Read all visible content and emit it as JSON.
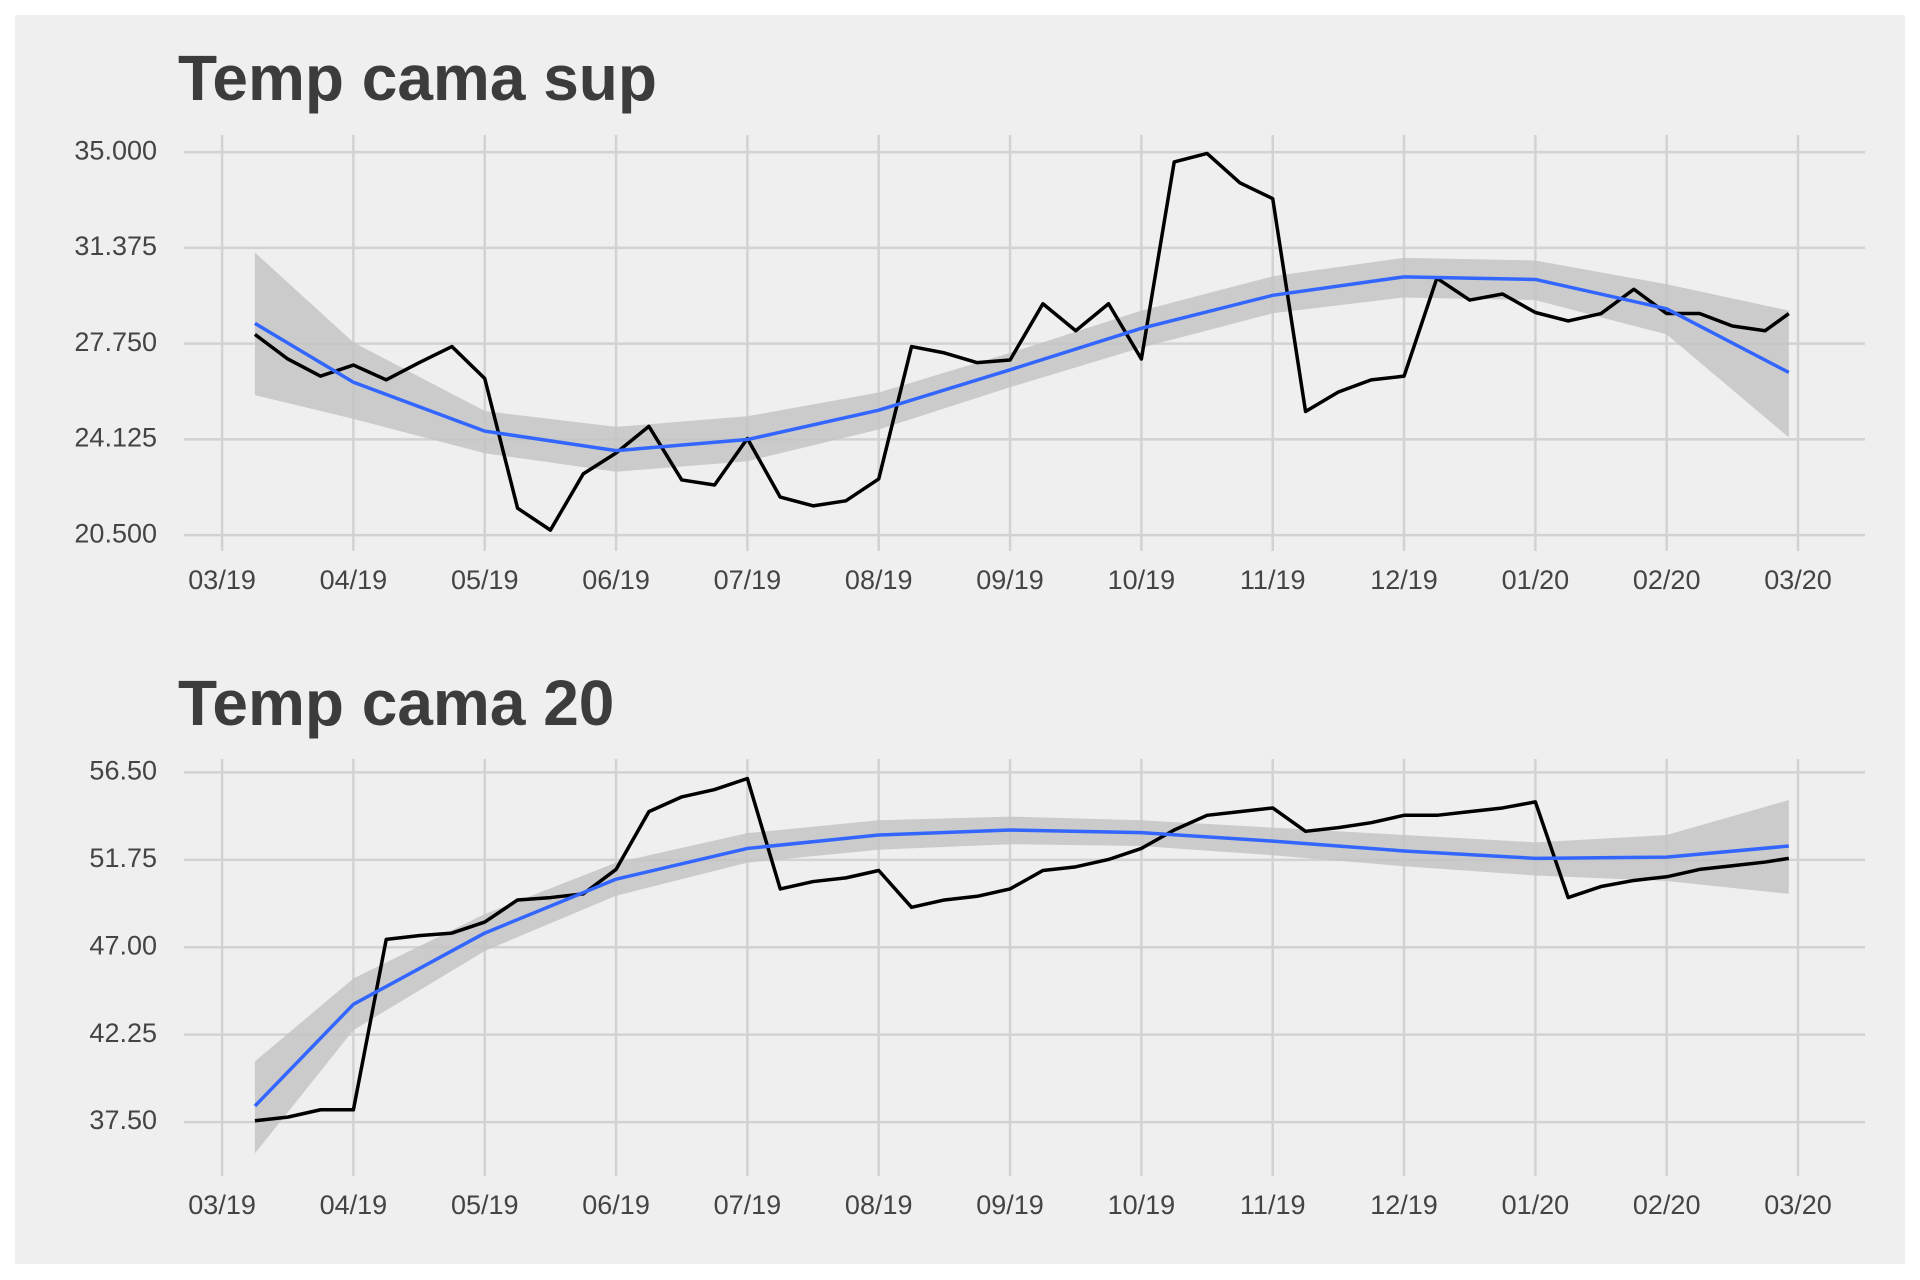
{
  "chart_data": [
    {
      "type": "line",
      "title": "Temp cama sup",
      "grid": true,
      "x": [
        0.25,
        0.5,
        0.75,
        1.0,
        1.25,
        1.5,
        1.75,
        2.0,
        2.25,
        2.5,
        2.75,
        3.0,
        3.25,
        3.5,
        3.75,
        4.0,
        4.25,
        4.5,
        4.75,
        5.0,
        5.25,
        5.5,
        5.75,
        6.0,
        6.25,
        6.5,
        6.75,
        7.0,
        7.25,
        7.5,
        7.75,
        8.0,
        8.25,
        8.5,
        8.75,
        9.0,
        9.25,
        9.5,
        9.75,
        10.0,
        10.25,
        10.5,
        10.75,
        11.0,
        11.25,
        11.5,
        11.75,
        11.93
      ],
      "xlim": [
        -0.29,
        12.51
      ],
      "xticks": [
        {
          "value": 0,
          "label": "03/19"
        },
        {
          "value": 1,
          "label": "04/19"
        },
        {
          "value": 2,
          "label": "05/19"
        },
        {
          "value": 3,
          "label": "06/19"
        },
        {
          "value": 4,
          "label": "07/19"
        },
        {
          "value": 5,
          "label": "08/19"
        },
        {
          "value": 6,
          "label": "09/19"
        },
        {
          "value": 7,
          "label": "10/19"
        },
        {
          "value": 8,
          "label": "11/19"
        },
        {
          "value": 9,
          "label": "12/19"
        },
        {
          "value": 10,
          "label": "01/20"
        },
        {
          "value": 11,
          "label": "02/20"
        },
        {
          "value": 12,
          "label": "03/20"
        }
      ],
      "ylim": [
        19.9,
        35.65
      ],
      "yticks": [
        {
          "value": 35,
          "label": "35.000"
        },
        31.375,
        {
          "value": 27.75,
          "label": "27.750"
        },
        24.125,
        {
          "value": 20.5,
          "label": "20.500"
        }
      ],
      "series": [
        {
          "color": "#000000",
          "values": [
            28.1,
            27.17,
            26.52,
            26.94,
            26.38,
            27.03,
            27.64,
            26.43,
            21.52,
            20.69,
            22.82,
            23.61,
            24.62,
            22.59,
            22.4,
            24.16,
            21.94,
            21.61,
            21.8,
            22.63,
            27.64,
            27.4,
            27.03,
            27.13,
            29.26,
            28.24,
            29.26,
            27.17,
            34.63,
            34.95,
            33.84,
            33.24,
            25.18,
            25.92,
            26.38,
            26.52,
            30.23,
            29.4,
            29.63,
            28.93,
            28.61,
            28.89,
            29.81,
            28.89,
            28.89,
            28.42,
            28.24,
            28.89
          ]
        }
      ],
      "smooth": {
        "color": "#3366ff",
        "band_color": "#c4c4c4",
        "x": [
          0.25,
          1,
          2,
          3,
          4,
          5,
          6,
          7,
          8,
          9,
          10,
          11,
          11.93
        ],
        "values": [
          28.52,
          26.29,
          24.44,
          23.7,
          24.12,
          25.23,
          26.76,
          28.33,
          29.58,
          30.28,
          30.18,
          29.07,
          26.66
        ],
        "lower": [
          25.8,
          24.9,
          23.6,
          22.9,
          23.3,
          24.5,
          26.1,
          27.6,
          28.9,
          29.5,
          29.4,
          28.1,
          24.2
        ],
        "upper": [
          31.2,
          27.8,
          25.2,
          24.6,
          25.0,
          25.9,
          27.4,
          29.0,
          30.3,
          31.0,
          30.9,
          30.0,
          29.0
        ]
      }
    },
    {
      "type": "line",
      "title": "Temp cama 20",
      "grid": true,
      "x": [
        0.25,
        0.5,
        0.75,
        1.0,
        1.25,
        1.5,
        1.75,
        2.0,
        2.25,
        2.5,
        2.75,
        3.0,
        3.25,
        3.5,
        3.75,
        4.0,
        4.25,
        4.5,
        4.75,
        5.0,
        5.25,
        5.5,
        5.75,
        6.0,
        6.25,
        6.5,
        6.75,
        7.0,
        7.25,
        7.5,
        7.75,
        8.0,
        8.25,
        8.5,
        8.75,
        9.0,
        9.25,
        9.5,
        9.75,
        10.0,
        10.25,
        10.5,
        10.75,
        11.0,
        11.25,
        11.5,
        11.75,
        11.93
      ],
      "xlim": [
        -0.29,
        12.51
      ],
      "xticks": [
        {
          "value": 0,
          "label": "03/19"
        },
        {
          "value": 1,
          "label": "04/19"
        },
        {
          "value": 2,
          "label": "05/19"
        },
        {
          "value": 3,
          "label": "06/19"
        },
        {
          "value": 4,
          "label": "07/19"
        },
        {
          "value": 5,
          "label": "08/19"
        },
        {
          "value": 6,
          "label": "09/19"
        },
        {
          "value": 7,
          "label": "10/19"
        },
        {
          "value": 8,
          "label": "11/19"
        },
        {
          "value": 9,
          "label": "12/19"
        },
        {
          "value": 10,
          "label": "01/20"
        },
        {
          "value": 11,
          "label": "02/20"
        },
        {
          "value": 12,
          "label": "03/20"
        }
      ],
      "ylim": [
        34.57,
        57.23
      ],
      "yticks": [
        {
          "value": 56.5,
          "label": "56.50"
        },
        51.75,
        {
          "value": 47,
          "label": "47.00"
        },
        42.25,
        {
          "value": 37.5,
          "label": "37.50"
        }
      ],
      "series": [
        {
          "color": "#000000",
          "values": [
            37.57,
            37.77,
            38.17,
            38.17,
            47.43,
            47.63,
            47.77,
            48.37,
            49.57,
            49.7,
            49.9,
            51.23,
            54.37,
            55.17,
            55.57,
            56.17,
            50.17,
            50.57,
            50.77,
            51.17,
            49.17,
            49.57,
            49.77,
            50.17,
            51.17,
            51.37,
            51.77,
            52.37,
            53.37,
            54.17,
            54.37,
            54.57,
            53.3,
            53.5,
            53.77,
            54.17,
            54.17,
            54.37,
            54.57,
            54.9,
            49.7,
            50.3,
            50.63,
            50.83,
            51.23,
            51.43,
            51.63,
            51.83
          ]
        }
      ],
      "smooth": {
        "color": "#3366ff",
        "band_color": "#c4c4c4",
        "x": [
          0.25,
          1,
          2,
          3,
          4,
          5,
          6,
          7,
          8,
          9,
          10,
          11,
          11.93
        ],
        "values": [
          38.37,
          43.9,
          47.77,
          50.7,
          52.37,
          53.1,
          53.37,
          53.23,
          52.77,
          52.23,
          51.83,
          51.9,
          52.5
        ],
        "lower": [
          35.8,
          42.5,
          46.8,
          49.8,
          51.6,
          52.3,
          52.6,
          52.5,
          52.0,
          51.4,
          50.9,
          50.6,
          49.9
        ],
        "upper": [
          40.8,
          45.3,
          48.8,
          51.6,
          53.2,
          53.9,
          54.1,
          53.9,
          53.5,
          53.1,
          52.7,
          53.1,
          55.0
        ]
      }
    }
  ]
}
